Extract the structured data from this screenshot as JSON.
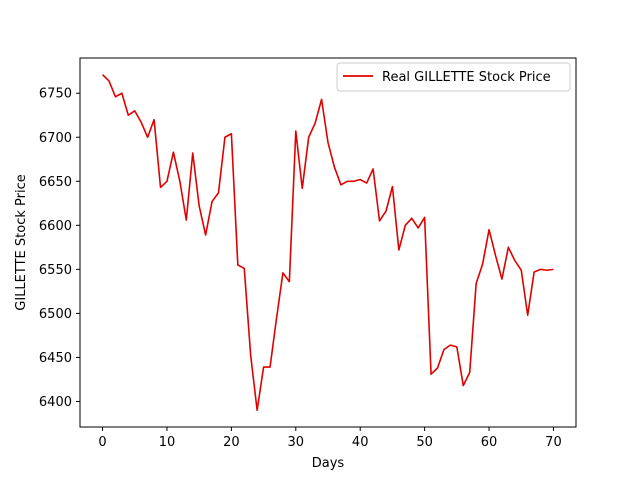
{
  "chart_data": {
    "type": "line",
    "xlabel": "Days",
    "ylabel": "GILLETTE Stock Price",
    "xlim": [
      -3.5,
      73.5
    ],
    "ylim": [
      6371,
      6790
    ],
    "xticks": [
      0,
      10,
      20,
      30,
      40,
      50,
      60,
      70
    ],
    "yticks": [
      6400,
      6450,
      6500,
      6550,
      6600,
      6650,
      6700,
      6750
    ],
    "grid": false,
    "legend_position": "top-right",
    "series": [
      {
        "name": "Real GILLETTE Stock Price",
        "color": "#e00000",
        "x": [
          0,
          1,
          2,
          3,
          4,
          5,
          6,
          7,
          8,
          9,
          10,
          11,
          12,
          13,
          14,
          15,
          16,
          17,
          18,
          19,
          20,
          21,
          22,
          23,
          24,
          25,
          26,
          27,
          28,
          29,
          30,
          31,
          32,
          33,
          34,
          35,
          36,
          37,
          38,
          39,
          40,
          41,
          42,
          43,
          44,
          45,
          46,
          47,
          48,
          49,
          50,
          51,
          52,
          53,
          54,
          55,
          56,
          57,
          58,
          59,
          60,
          61,
          62,
          63,
          64,
          65,
          66,
          67,
          68,
          69,
          70
        ],
        "y": [
          6771,
          6764,
          6746,
          6750,
          6725,
          6730,
          6717,
          6700,
          6720,
          6643,
          6650,
          6683,
          6650,
          6606,
          6682,
          6622,
          6589,
          6627,
          6637,
          6700,
          6704,
          6555,
          6551,
          6452,
          6390,
          6439,
          6439,
          6494,
          6546,
          6536,
          6707,
          6642,
          6700,
          6716,
          6743,
          6694,
          6666,
          6646,
          6650,
          6650,
          6652,
          6648,
          6664,
          6605,
          6616,
          6644,
          6572,
          6600,
          6608,
          6597,
          6609,
          6431,
          6438,
          6459,
          6464,
          6462,
          6418,
          6433,
          6534,
          6556,
          6595,
          6566,
          6539,
          6575,
          6560,
          6549,
          6498,
          6547,
          6550,
          6549,
          6550
        ]
      }
    ]
  }
}
